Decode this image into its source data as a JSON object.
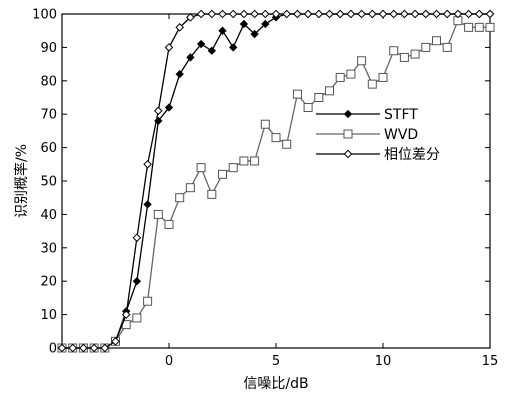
{
  "chart_data": {
    "type": "line",
    "xlabel": "信噪比/dB",
    "ylabel": "识别概率/%",
    "xlim": [
      -5,
      15
    ],
    "ylim": [
      0,
      100
    ],
    "xticks": [
      0,
      5,
      10,
      15
    ],
    "yticks": [
      0,
      10,
      20,
      30,
      40,
      50,
      60,
      70,
      80,
      90,
      100
    ],
    "grid": false,
    "legend_position": "right",
    "series": [
      {
        "name": "STFT",
        "marker": "filled-diamond",
        "points": [
          [
            -5,
            0
          ],
          [
            -4.5,
            0
          ],
          [
            -4,
            0
          ],
          [
            -3.5,
            0
          ],
          [
            -3,
            0
          ],
          [
            -2.5,
            2
          ],
          [
            -2,
            11
          ],
          [
            -1.5,
            20
          ],
          [
            -1,
            43
          ],
          [
            -0.5,
            68
          ],
          [
            0,
            72
          ],
          [
            0.5,
            82
          ],
          [
            1,
            87
          ],
          [
            1.5,
            91
          ],
          [
            2,
            89
          ],
          [
            2.5,
            95
          ],
          [
            3,
            90
          ],
          [
            3.5,
            97
          ],
          [
            4,
            94
          ],
          [
            4.5,
            97
          ],
          [
            5,
            99
          ],
          [
            5.5,
            100
          ],
          [
            6,
            100
          ],
          [
            6.5,
            100
          ],
          [
            7,
            100
          ],
          [
            7.5,
            100
          ],
          [
            8,
            100
          ],
          [
            8.5,
            100
          ],
          [
            9,
            100
          ],
          [
            9.5,
            100
          ],
          [
            10,
            100
          ],
          [
            10.5,
            100
          ],
          [
            11,
            100
          ],
          [
            11.5,
            100
          ],
          [
            12,
            100
          ],
          [
            12.5,
            100
          ],
          [
            13,
            100
          ],
          [
            13.5,
            100
          ],
          [
            14,
            100
          ],
          [
            14.5,
            100
          ],
          [
            15,
            100
          ]
        ]
      },
      {
        "name": "WVD",
        "marker": "hollow-square",
        "points": [
          [
            -5,
            0
          ],
          [
            -4.5,
            0
          ],
          [
            -4,
            0
          ],
          [
            -3.5,
            0
          ],
          [
            -3,
            0
          ],
          [
            -2.5,
            2
          ],
          [
            -2,
            7
          ],
          [
            -1.5,
            9
          ],
          [
            -1,
            14
          ],
          [
            -0.5,
            40
          ],
          [
            0,
            37
          ],
          [
            0.5,
            45
          ],
          [
            1,
            48
          ],
          [
            1.5,
            54
          ],
          [
            2,
            46
          ],
          [
            2.5,
            52
          ],
          [
            3,
            54
          ],
          [
            3.5,
            56
          ],
          [
            4,
            56
          ],
          [
            4.5,
            67
          ],
          [
            5,
            63
          ],
          [
            5.5,
            61
          ],
          [
            6,
            76
          ],
          [
            6.5,
            72
          ],
          [
            7,
            75
          ],
          [
            7.5,
            77
          ],
          [
            8,
            81
          ],
          [
            8.5,
            82
          ],
          [
            9,
            86
          ],
          [
            9.5,
            79
          ],
          [
            10,
            81
          ],
          [
            10.5,
            89
          ],
          [
            11,
            87
          ],
          [
            11.5,
            88
          ],
          [
            12,
            90
          ],
          [
            12.5,
            92
          ],
          [
            13,
            90
          ],
          [
            13.5,
            98
          ],
          [
            14,
            96
          ],
          [
            14.5,
            96
          ],
          [
            15,
            96
          ]
        ]
      },
      {
        "name": "相位差分",
        "marker": "hollow-diamond",
        "points": [
          [
            -5,
            0
          ],
          [
            -4.5,
            0
          ],
          [
            -4,
            0
          ],
          [
            -3.5,
            0
          ],
          [
            -3,
            0
          ],
          [
            -2.5,
            2
          ],
          [
            -2,
            10
          ],
          [
            -1.5,
            33
          ],
          [
            -1,
            55
          ],
          [
            -0.5,
            71
          ],
          [
            0,
            90
          ],
          [
            0.5,
            96
          ],
          [
            1,
            99
          ],
          [
            1.5,
            100
          ],
          [
            2,
            100
          ],
          [
            2.5,
            100
          ],
          [
            3,
            100
          ],
          [
            3.5,
            100
          ],
          [
            4,
            100
          ],
          [
            4.5,
            100
          ],
          [
            5,
            100
          ],
          [
            5.5,
            100
          ],
          [
            6,
            100
          ],
          [
            6.5,
            100
          ],
          [
            7,
            100
          ],
          [
            7.5,
            100
          ],
          [
            8,
            100
          ],
          [
            8.5,
            100
          ],
          [
            9,
            100
          ],
          [
            9.5,
            100
          ],
          [
            10,
            100
          ],
          [
            10.5,
            100
          ],
          [
            11,
            100
          ],
          [
            11.5,
            100
          ],
          [
            12,
            100
          ],
          [
            12.5,
            100
          ],
          [
            13,
            100
          ],
          [
            13.5,
            100
          ],
          [
            14,
            100
          ],
          [
            14.5,
            100
          ],
          [
            15,
            100
          ]
        ]
      }
    ]
  }
}
